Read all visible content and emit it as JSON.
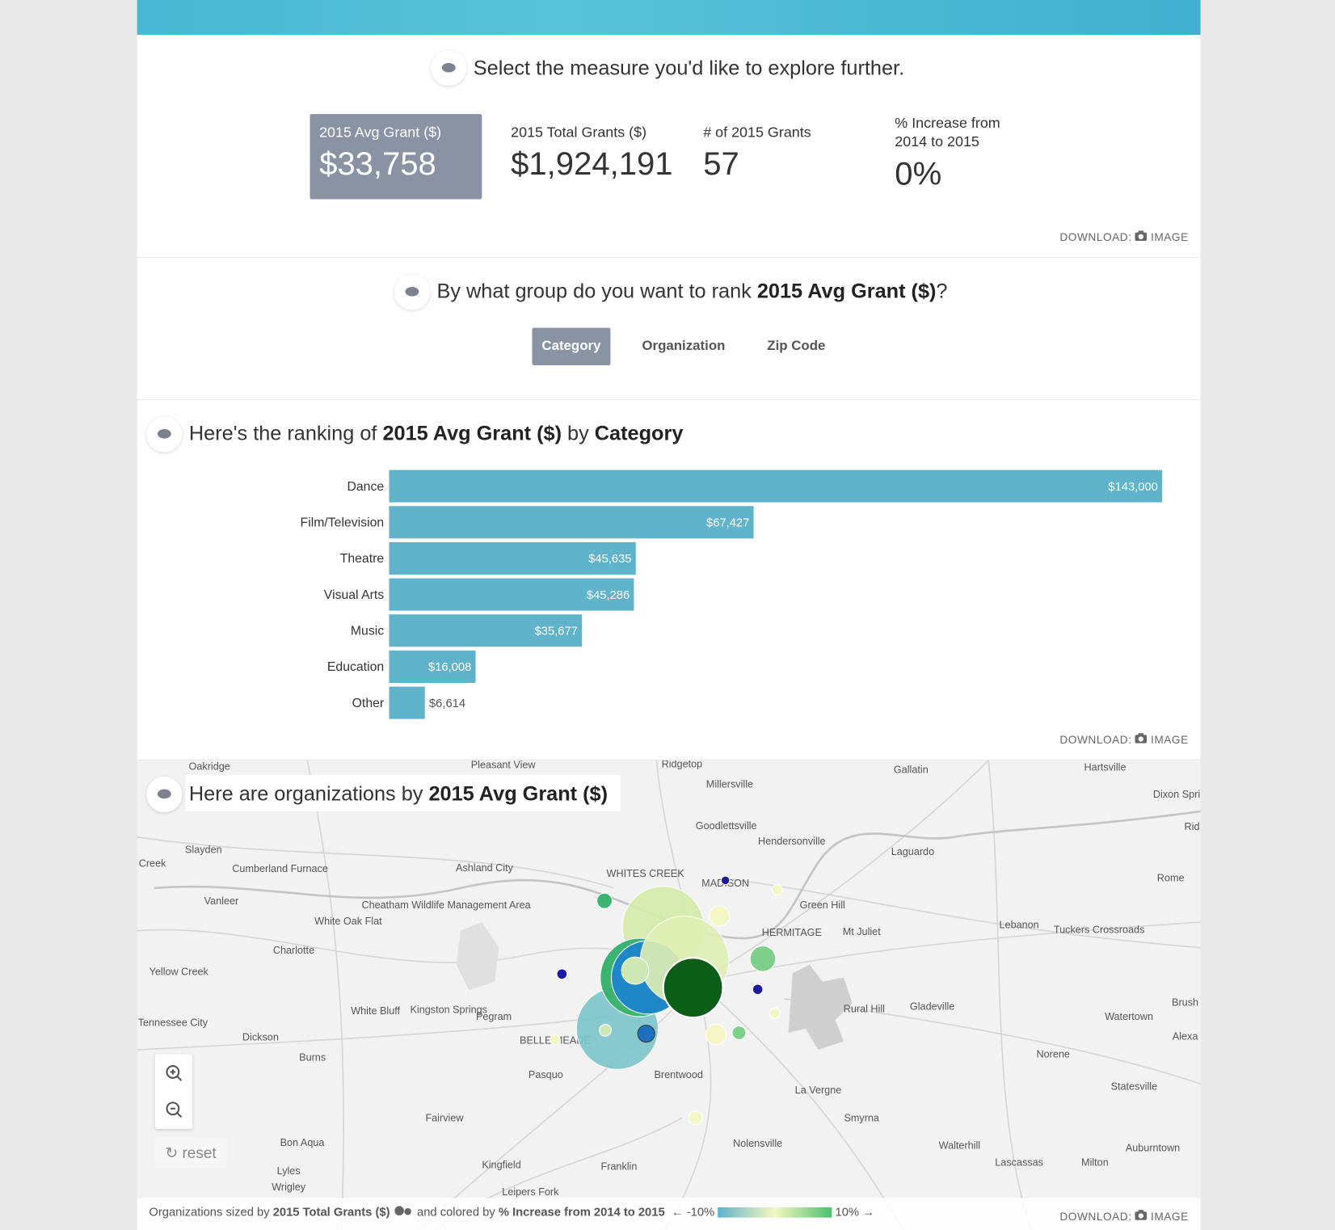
{
  "header": {
    "prompt": "Select the measure you'd like to explore further."
  },
  "measures": [
    {
      "label": "2015 Avg Grant ($)",
      "value": "$33,758"
    },
    {
      "label": "2015 Total Grants ($)",
      "value": "$1,924,191"
    },
    {
      "label": "# of 2015 Grants",
      "value": "57"
    },
    {
      "label": "% Increase from 2014 to 2015",
      "value": "0%"
    }
  ],
  "download": {
    "label": "DOWNLOAD:",
    "link": "IMAGE"
  },
  "group_prompt": {
    "before": "By what group do you want to rank",
    "measure": "2015 Avg Grant ($)",
    "after": "?"
  },
  "group_options": [
    "Category",
    "Organization",
    "Zip Code"
  ],
  "ranking_title": {
    "before": "Here's the ranking of",
    "measure": "2015 Avg Grant ($)",
    "by": "by",
    "group": "Category"
  },
  "chart_data": {
    "type": "bar",
    "orientation": "horizontal",
    "categories": [
      "Dance",
      "Film/Television",
      "Theatre",
      "Visual Arts",
      "Music",
      "Education",
      "Other"
    ],
    "values": [
      143000,
      67427,
      45635,
      45286,
      35677,
      16008,
      6614
    ],
    "value_labels": [
      "$143,000",
      "$67,427",
      "$45,635",
      "$45,286",
      "$35,677",
      "$16,008",
      "$6,614"
    ],
    "color": "#5fb3cb"
  },
  "map": {
    "title_before": "Here are organizations by",
    "title_measure": "2015 Avg Grant ($)",
    "reset": "reset",
    "places": [
      "Oakridge",
      "Pleasant View",
      "Ridgetop",
      "Gallatin",
      "Hartsville",
      "Millersville",
      "Dixon Spri",
      "Goodlettsville",
      "Hendersonville",
      "Laguardo",
      "Rid",
      "Slayden",
      "Creek",
      "Cumberland Furnace",
      "Ashland City",
      "WHITES CREEK",
      "MADISON",
      "Rome",
      "Vanleer",
      "Green Hill",
      "Cheatham Wildlife Management Area",
      "White Oak Flat",
      "Lebanon",
      "HERMITAGE",
      "Mt Juliet",
      "Tuckers Crossroads",
      "Charlotte",
      "Yellow Creek",
      "Brush",
      "Rural Hill",
      "Gladeville",
      "White Bluff",
      "Kingston Springs",
      "Pegram",
      "Watertown",
      "Tennessee City",
      "Dickson",
      "BELLE MEADE",
      "Alexa",
      "Norene",
      "Burns",
      "Pasquo",
      "Brentwood",
      "Statesville",
      "La Vergne",
      "Fairview",
      "Smyrna",
      "Bon Aqua",
      "Nolensville",
      "Walterhill",
      "Auburntown",
      "Kingfield",
      "Franklin",
      "Lascassas",
      "Milton",
      "Lyles",
      "Wrigley",
      "Leipers Fork"
    ],
    "legend": {
      "sized_by": "Organizations sized by",
      "size_measure": "2015 Total Grants ($)",
      "colored_by": "and colored by",
      "color_measure": "% Increase from 2014 to 2015",
      "low": "← -10%",
      "high": "10% →"
    }
  }
}
